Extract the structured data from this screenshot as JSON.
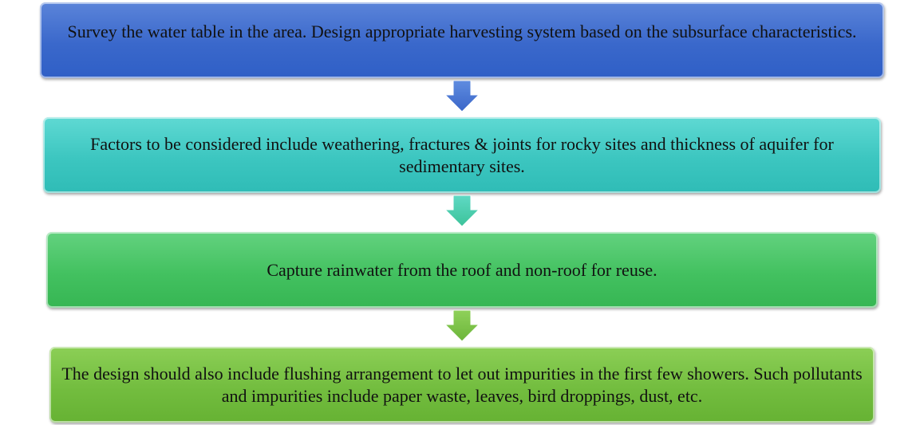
{
  "steps": [
    {
      "text": "Survey the water table in the area. Design appropriate harvesting system based on the subsurface characteristics.",
      "color": "#3a68cb"
    },
    {
      "text": "Factors to be considered include weathering, fractures & joints for rocky sites and thickness of aquifer for sedimentary sites.",
      "color": "#3cc6c0"
    },
    {
      "text": "Capture rainwater  from the roof and non-roof for reuse.",
      "color": "#43c160"
    },
    {
      "text": "The design should also include flushing arrangement to let out impurities in the first few showers. Such pollutants and impurities include paper waste, leaves,  bird droppings, dust, etc.",
      "color": "#73bd3f"
    }
  ],
  "arrows": [
    {
      "icon": "arrow-down-icon",
      "color": "#4a78d2"
    },
    {
      "icon": "arrow-down-icon",
      "color": "#4ccfb0"
    },
    {
      "icon": "arrow-down-icon",
      "color": "#7cc44a"
    }
  ]
}
